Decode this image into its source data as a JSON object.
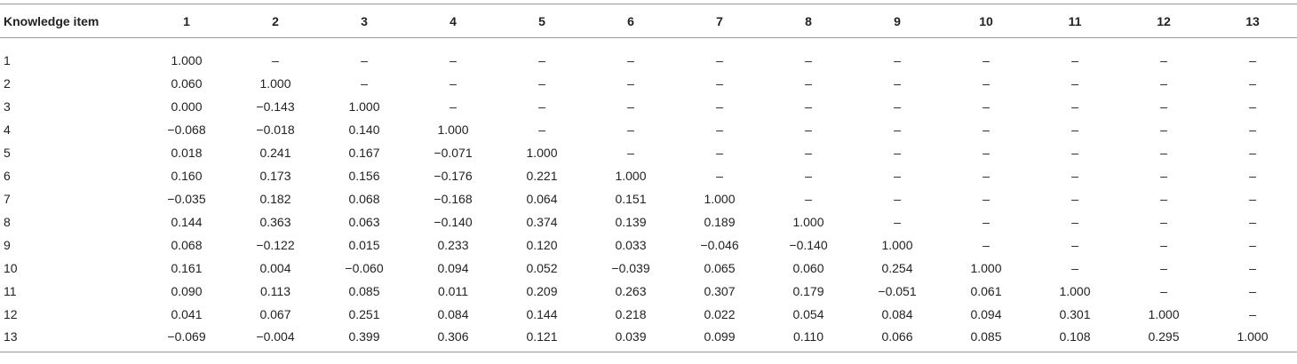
{
  "table": {
    "headers": [
      "Knowledge item",
      "1",
      "2",
      "3",
      "4",
      "5",
      "6",
      "7",
      "8",
      "9",
      "10",
      "11",
      "12",
      "13"
    ],
    "rows": [
      [
        "1",
        "1.000",
        "–",
        "–",
        "–",
        "–",
        "–",
        "–",
        "–",
        "–",
        "–",
        "–",
        "–",
        "–"
      ],
      [
        "2",
        "0.060",
        "1.000",
        "–",
        "–",
        "–",
        "–",
        "–",
        "–",
        "–",
        "–",
        "–",
        "–",
        "–"
      ],
      [
        "3",
        "0.000",
        "−0.143",
        "1.000",
        "–",
        "–",
        "–",
        "–",
        "–",
        "–",
        "–",
        "–",
        "–",
        "–"
      ],
      [
        "4",
        "−0.068",
        "−0.018",
        "0.140",
        "1.000",
        "–",
        "–",
        "–",
        "–",
        "–",
        "–",
        "–",
        "–",
        "–"
      ],
      [
        "5",
        "0.018",
        "0.241",
        "0.167",
        "−0.071",
        "1.000",
        "–",
        "–",
        "–",
        "–",
        "–",
        "–",
        "–",
        "–"
      ],
      [
        "6",
        "0.160",
        "0.173",
        "0.156",
        "−0.176",
        "0.221",
        "1.000",
        "–",
        "–",
        "–",
        "–",
        "–",
        "–",
        "–"
      ],
      [
        "7",
        "−0.035",
        "0.182",
        "0.068",
        "−0.168",
        "0.064",
        "0.151",
        "1.000",
        "–",
        "–",
        "–",
        "–",
        "–",
        "–"
      ],
      [
        "8",
        "0.144",
        "0.363",
        "0.063",
        "−0.140",
        "0.374",
        "0.139",
        "0.189",
        "1.000",
        "–",
        "–",
        "–",
        "–",
        "–"
      ],
      [
        "9",
        "0.068",
        "−0.122",
        "0.015",
        "0.233",
        "0.120",
        "0.033",
        "−0.046",
        "−0.140",
        "1.000",
        "–",
        "–",
        "–",
        "–"
      ],
      [
        "10",
        "0.161",
        "0.004",
        "−0.060",
        "0.094",
        "0.052",
        "−0.039",
        "0.065",
        "0.060",
        "0.254",
        "1.000",
        "–",
        "–",
        "–"
      ],
      [
        "11",
        "0.090",
        "0.113",
        "0.085",
        "0.011",
        "0.209",
        "0.263",
        "0.307",
        "0.179",
        "−0.051",
        "0.061",
        "1.000",
        "–",
        "–"
      ],
      [
        "12",
        "0.041",
        "0.067",
        "0.251",
        "0.084",
        "0.144",
        "0.218",
        "0.022",
        "0.054",
        "0.084",
        "0.094",
        "0.301",
        "1.000",
        "–"
      ],
      [
        "13",
        "−0.069",
        "−0.004",
        "0.399",
        "0.306",
        "0.121",
        "0.039",
        "0.099",
        "0.110",
        "0.066",
        "0.085",
        "0.108",
        "0.295",
        "1.000"
      ]
    ]
  }
}
